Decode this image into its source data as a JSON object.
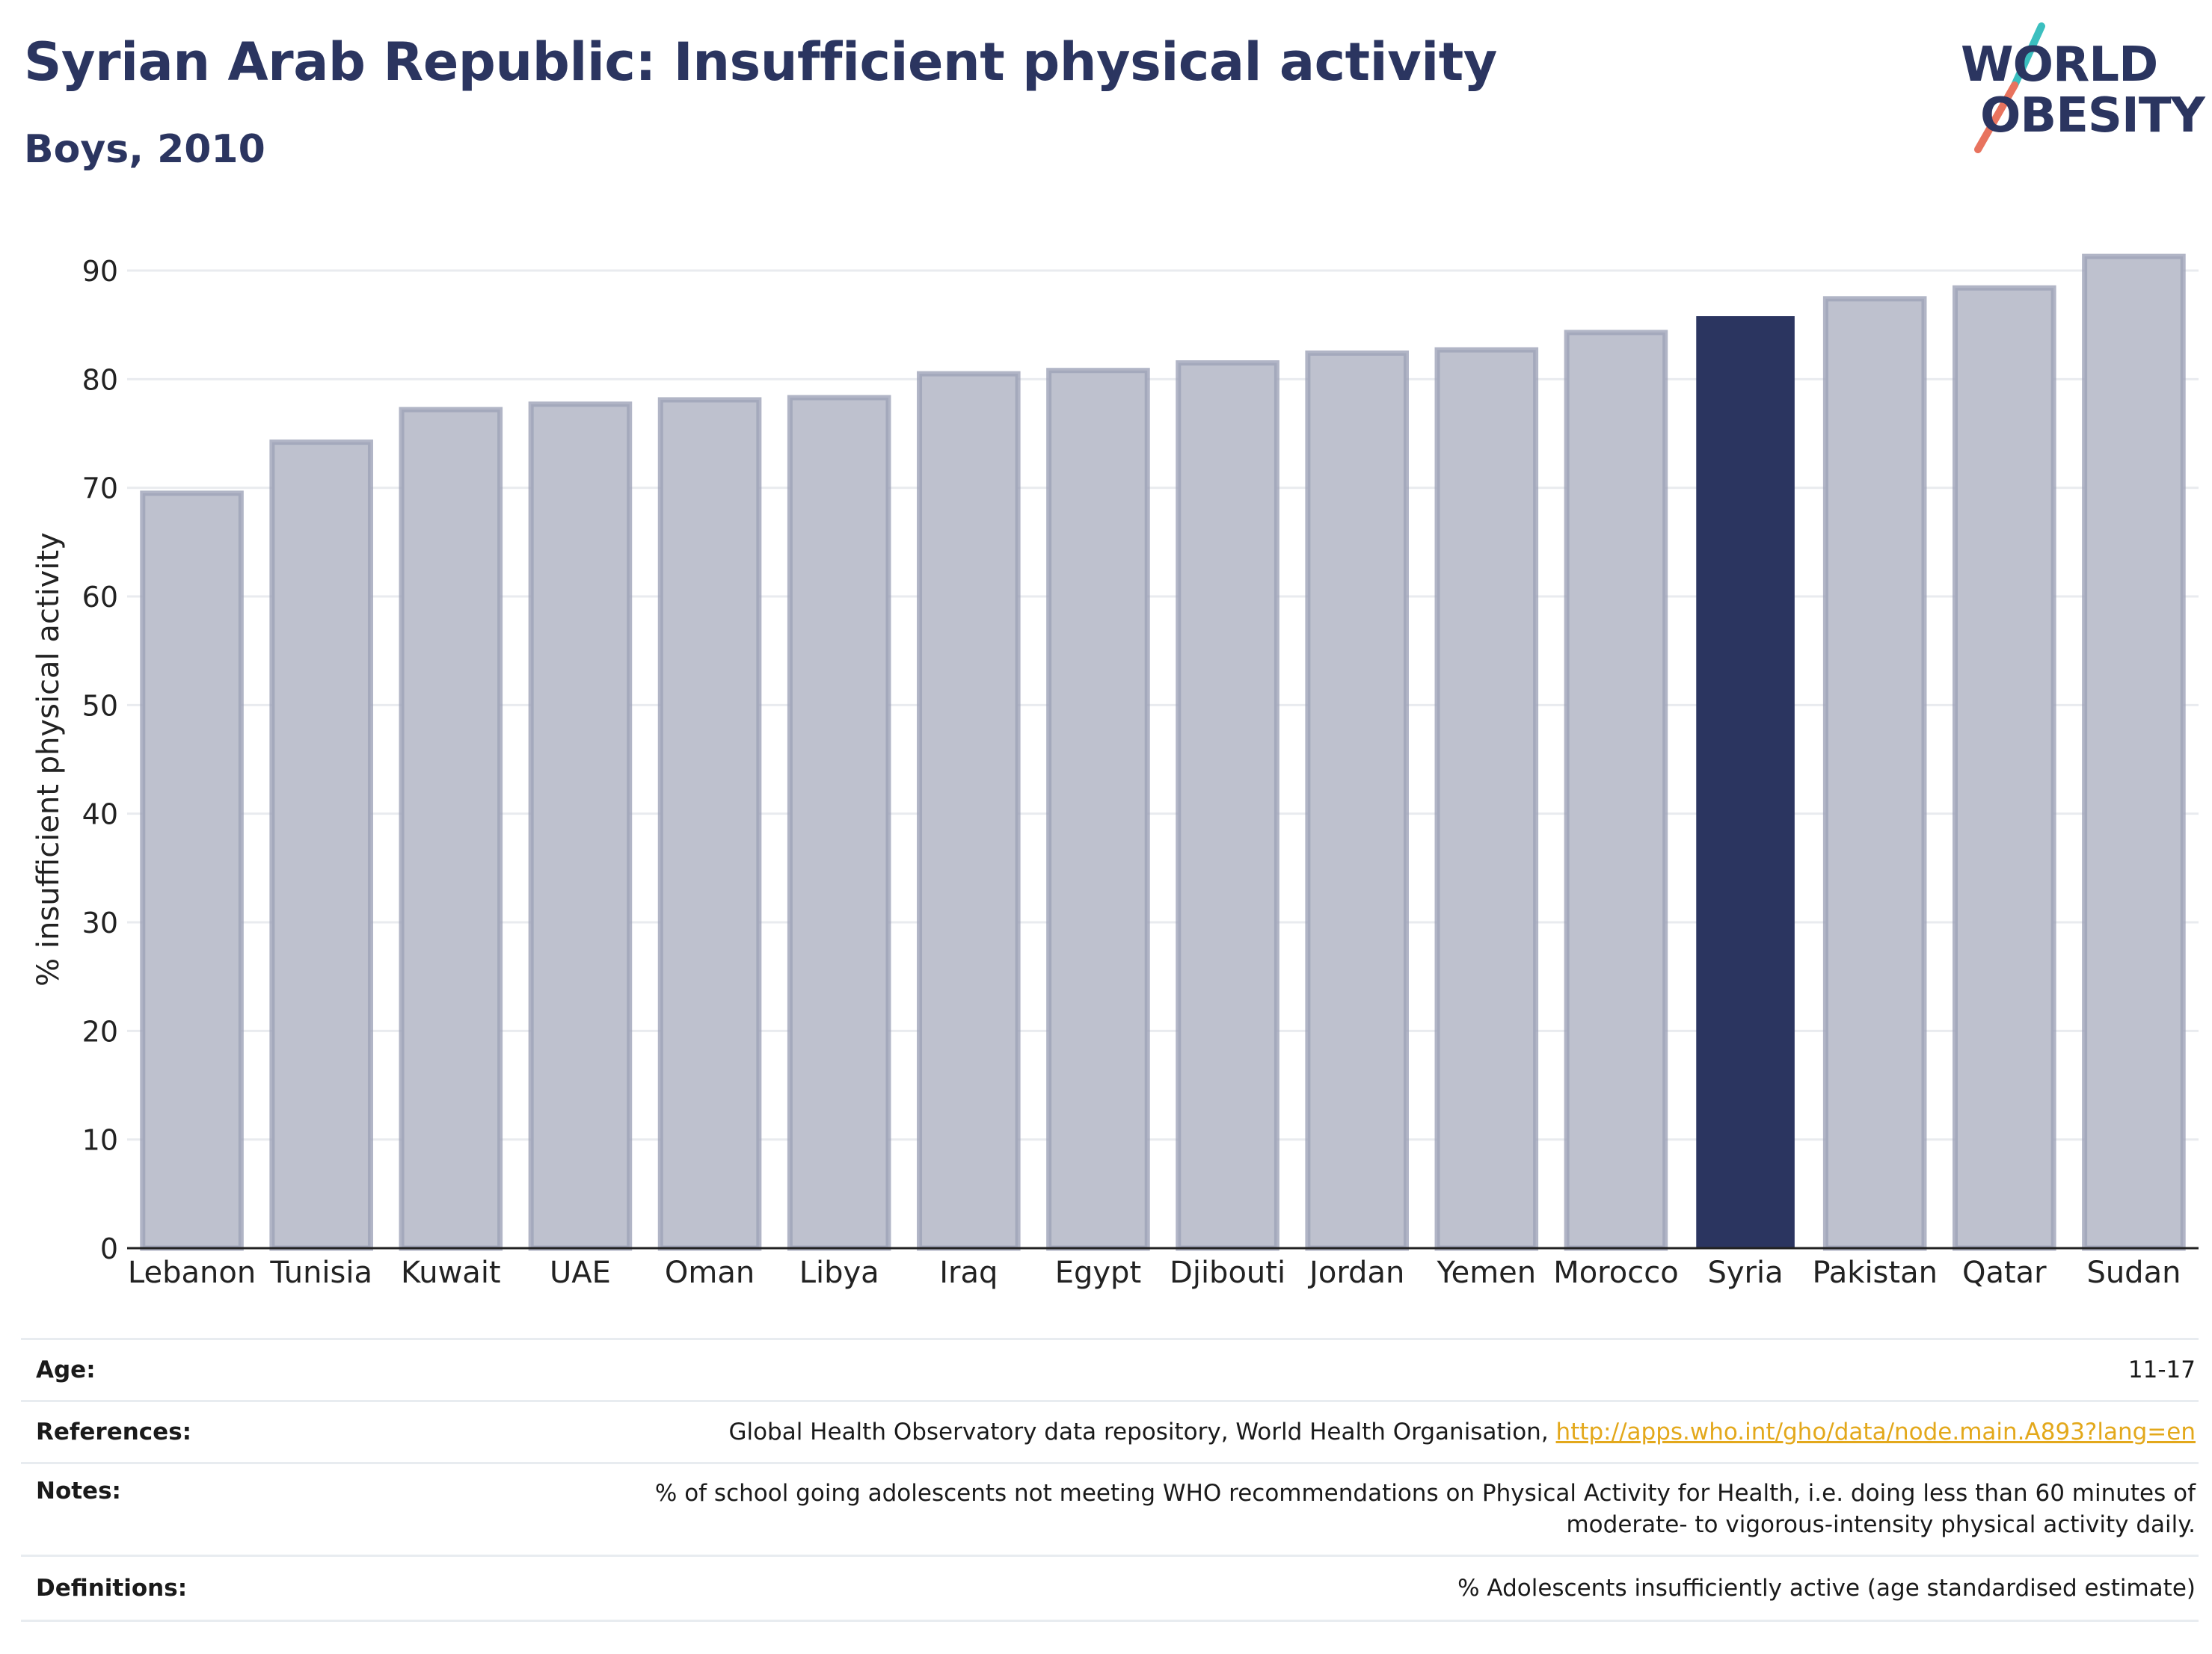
{
  "header": {
    "title": "Syrian Arab Republic: Insufficient physical activity",
    "subtitle": "Boys, 2010"
  },
  "logo": {
    "line1": "WORLD",
    "line2": "OBESITY",
    "colors": {
      "text": "#2b3560",
      "slash_top": "#3bbfbf",
      "slash_bottom": "#e8735e"
    }
  },
  "chart_data": {
    "type": "bar",
    "ylabel": "% insufficient physical activity",
    "ylim": [
      0,
      93
    ],
    "yticks": [
      0,
      10,
      20,
      30,
      40,
      50,
      60,
      70,
      80,
      90
    ],
    "grid": true,
    "categories": [
      "Lebanon",
      "Tunisia",
      "Kuwait",
      "UAE",
      "Oman",
      "Libya",
      "Iraq",
      "Egypt",
      "Djibouti",
      "Jordan",
      "Yemen",
      "Morocco",
      "Syria",
      "Pakistan",
      "Qatar",
      "Sudan"
    ],
    "values": [
      69.5,
      74.2,
      77.2,
      77.7,
      78.1,
      78.3,
      80.5,
      80.8,
      81.5,
      82.4,
      82.7,
      84.3,
      85.8,
      87.4,
      88.4,
      91.3
    ],
    "highlight": "Syria",
    "colors": {
      "bar": "#bec1ce",
      "bar_border": "#9ea3b8",
      "highlight": "#2b3560",
      "grid": "#e9ebef",
      "axis": "#222222"
    }
  },
  "meta": {
    "age_label": "Age:",
    "age_value": "11-17",
    "references_label": "References:",
    "references_text": "Global Health Observatory data repository, World Health Organisation, ",
    "references_link": "http://apps.who.int/gho/data/node.main.A893?lang=en",
    "notes_label": "Notes:",
    "notes_line1": "% of school going adolescents not meeting WHO recommendations on Physical Activity for Health, i.e. doing less than 60 minutes of",
    "notes_line2": "moderate- to vigorous-intensity physical activity daily.",
    "definitions_label": "Definitions:",
    "definitions_value": "% Adolescents insufficiently active (age standardised estimate)"
  }
}
